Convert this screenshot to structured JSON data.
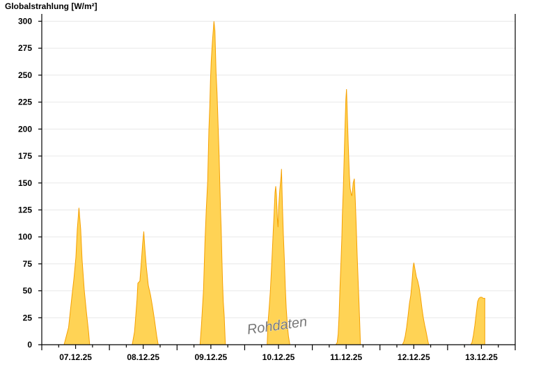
{
  "chart_data": {
    "type": "area",
    "title": "Globalstrahlung [W/m²]",
    "xlabel": "",
    "ylabel": "Globalstrahlung [W/m²]",
    "ylim": [
      0,
      300
    ],
    "yticks": [
      "0",
      "25",
      "50",
      "75",
      "100",
      "125",
      "150",
      "175",
      "200",
      "225",
      "250",
      "275",
      "300"
    ],
    "xlim": [
      "2025-12-07 00:00",
      "2025-12-14 00:00"
    ],
    "xticks": [
      "07.12.25",
      "08.12.25",
      "09.12.25",
      "10.12.25",
      "11.12.25",
      "12.12.25",
      "13.12.25"
    ],
    "grid": true,
    "watermark": "Rohdaten",
    "colors": {
      "fill": "#ffd355",
      "line": "#f5a000"
    },
    "days": [
      {
        "date": "2025-12-07",
        "points": [
          [
            "07:54",
            0
          ],
          [
            "09:30",
            16
          ],
          [
            "10:42",
            45
          ],
          [
            "11:24",
            61
          ],
          [
            "12:06",
            81
          ],
          [
            "12:36",
            107
          ],
          [
            "13:12",
            127
          ],
          [
            "13:48",
            107
          ],
          [
            "14:18",
            79
          ],
          [
            "15:06",
            50
          ],
          [
            "15:48",
            31
          ],
          [
            "16:36",
            12
          ],
          [
            "17:00",
            0
          ]
        ]
      },
      {
        "date": "2025-12-08",
        "points": [
          [
            "08:06",
            0
          ],
          [
            "08:54",
            12
          ],
          [
            "09:48",
            42
          ],
          [
            "10:06",
            57
          ],
          [
            "10:48",
            59
          ],
          [
            "11:18",
            76
          ],
          [
            "11:48",
            94
          ],
          [
            "12:12",
            105
          ],
          [
            "12:36",
            89
          ],
          [
            "13:06",
            72
          ],
          [
            "13:48",
            55
          ],
          [
            "14:36",
            46
          ],
          [
            "15:18",
            35
          ],
          [
            "16:00",
            23
          ],
          [
            "16:48",
            8
          ],
          [
            "17:18",
            0
          ]
        ]
      },
      {
        "date": "2025-12-09",
        "points": [
          [
            "08:09",
            0
          ],
          [
            "08:39",
            18
          ],
          [
            "09:23",
            51
          ],
          [
            "09:53",
            94
          ],
          [
            "10:23",
            126
          ],
          [
            "10:52",
            152
          ],
          [
            "11:17",
            199
          ],
          [
            "11:37",
            221
          ],
          [
            "11:52",
            245
          ],
          [
            "12:07",
            262
          ],
          [
            "12:22",
            273
          ],
          [
            "12:36",
            283
          ],
          [
            "13:06",
            300
          ],
          [
            "13:26",
            291
          ],
          [
            "13:50",
            253
          ],
          [
            "14:11",
            234
          ],
          [
            "14:26",
            215
          ],
          [
            "14:41",
            195
          ],
          [
            "14:55",
            176
          ],
          [
            "15:10",
            150
          ],
          [
            "15:25",
            126
          ],
          [
            "15:40",
            107
          ],
          [
            "15:55",
            81
          ],
          [
            "16:10",
            57
          ],
          [
            "16:25",
            40
          ],
          [
            "16:44",
            27
          ],
          [
            "16:54",
            16
          ],
          [
            "17:09",
            0
          ]
        ]
      },
      {
        "date": "2025-12-10",
        "points": [
          [
            "07:59",
            0
          ],
          [
            "08:18",
            21
          ],
          [
            "08:48",
            38
          ],
          [
            "09:07",
            50
          ],
          [
            "09:28",
            68
          ],
          [
            "09:47",
            85
          ],
          [
            "10:07",
            105
          ],
          [
            "10:27",
            122
          ],
          [
            "10:46",
            141
          ],
          [
            "11:01",
            147
          ],
          [
            "11:16",
            139
          ],
          [
            "11:35",
            118
          ],
          [
            "11:50",
            109
          ],
          [
            "12:05",
            128
          ],
          [
            "12:26",
            143
          ],
          [
            "12:55",
            156
          ],
          [
            "13:04",
            163
          ],
          [
            "13:25",
            128
          ],
          [
            "13:44",
            102
          ],
          [
            "14:04",
            79
          ],
          [
            "14:25",
            53
          ],
          [
            "14:44",
            34
          ],
          [
            "15:09",
            18
          ],
          [
            "15:32",
            8
          ],
          [
            "16:02",
            0
          ]
        ]
      },
      {
        "date": "2025-12-11",
        "points": [
          [
            "08:20",
            0
          ],
          [
            "08:49",
            2
          ],
          [
            "09:10",
            10
          ],
          [
            "09:29",
            27
          ],
          [
            "09:49",
            53
          ],
          [
            "10:10",
            76
          ],
          [
            "10:29",
            100
          ],
          [
            "10:39",
            120
          ],
          [
            "10:58",
            143
          ],
          [
            "11:17",
            171
          ],
          [
            "11:38",
            206
          ],
          [
            "11:53",
            227
          ],
          [
            "12:08",
            237
          ],
          [
            "12:27",
            210
          ],
          [
            "12:47",
            184
          ],
          [
            "13:07",
            158
          ],
          [
            "13:26",
            145
          ],
          [
            "13:46",
            140
          ],
          [
            "14:01",
            138
          ],
          [
            "14:16",
            143
          ],
          [
            "14:30",
            150
          ],
          [
            "14:55",
            154
          ],
          [
            "15:15",
            134
          ],
          [
            "15:36",
            109
          ],
          [
            "15:55",
            83
          ],
          [
            "16:14",
            61
          ],
          [
            "16:35",
            38
          ],
          [
            "16:54",
            14
          ],
          [
            "17:04",
            0
          ]
        ]
      },
      {
        "date": "2025-12-12",
        "points": [
          [
            "07:59",
            0
          ],
          [
            "08:29",
            3
          ],
          [
            "08:58",
            8
          ],
          [
            "09:28",
            16
          ],
          [
            "09:58",
            27
          ],
          [
            "10:27",
            38
          ],
          [
            "10:57",
            46
          ],
          [
            "11:16",
            55
          ],
          [
            "11:31",
            63
          ],
          [
            "11:46",
            72
          ],
          [
            "12:01",
            76
          ],
          [
            "12:26",
            70
          ],
          [
            "12:55",
            63
          ],
          [
            "13:25",
            59
          ],
          [
            "13:55",
            53
          ],
          [
            "14:25",
            44
          ],
          [
            "14:54",
            34
          ],
          [
            "15:23",
            25
          ],
          [
            "15:53",
            18
          ],
          [
            "16:23",
            12
          ],
          [
            "16:53",
            5
          ],
          [
            "17:18",
            0
          ]
        ]
      },
      {
        "date": "2025-12-13",
        "points": [
          [
            "08:11",
            0
          ],
          [
            "08:40",
            2
          ],
          [
            "09:10",
            9
          ],
          [
            "09:40",
            18
          ],
          [
            "10:10",
            29
          ],
          [
            "10:39",
            40
          ],
          [
            "11:08",
            43
          ],
          [
            "11:38",
            44
          ],
          [
            "12:08",
            44
          ],
          [
            "12:38",
            43
          ],
          [
            "13:12",
            43
          ]
        ]
      }
    ]
  }
}
